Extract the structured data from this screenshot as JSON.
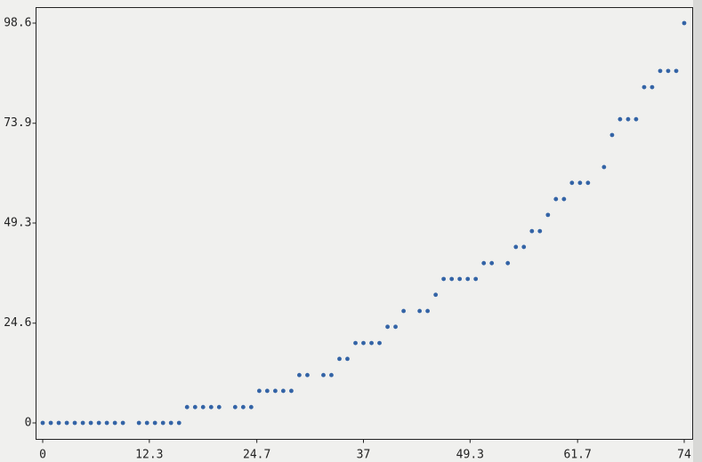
{
  "chart_data": {
    "type": "scatter",
    "color": "#3464a6",
    "xlim": [
      0,
      74
    ],
    "ylim": [
      0,
      98.6
    ],
    "xticks": [
      0,
      12.3,
      24.7,
      37,
      49.3,
      61.7,
      74
    ],
    "yticks": [
      0,
      24.6,
      49.3,
      73.9,
      98.6
    ],
    "x": [
      0,
      0.93,
      1.85,
      2.78,
      3.7,
      4.63,
      5.55,
      6.48,
      7.4,
      8.33,
      9.25,
      11.1,
      12.03,
      12.95,
      13.88,
      14.8,
      15.73,
      16.65,
      17.58,
      18.5,
      19.43,
      20.35,
      22.2,
      23.13,
      24.05,
      24.98,
      25.9,
      26.83,
      27.75,
      28.68,
      29.6,
      30.53,
      32.38,
      33.3,
      34.23,
      35.15,
      36.08,
      37,
      37.93,
      38.85,
      39.78,
      40.7,
      41.63,
      43.48,
      44.4,
      45.33,
      46.25,
      47.18,
      48.1,
      49.03,
      49.95,
      50.88,
      51.8,
      53.65,
      54.58,
      55.5,
      56.43,
      57.35,
      58.28,
      59.2,
      60.13,
      61.05,
      61.98,
      62.9,
      64.75,
      65.68,
      66.6,
      67.53,
      68.45,
      69.38,
      70.3,
      71.23,
      72.15,
      73.08,
      74
    ],
    "values": [
      0,
      0,
      0,
      0,
      0,
      0,
      0,
      0,
      0,
      0,
      0,
      0,
      0,
      0,
      0,
      0,
      0,
      3.9,
      3.9,
      3.9,
      3.9,
      3.9,
      3.9,
      3.9,
      3.9,
      7.9,
      7.9,
      7.9,
      7.9,
      7.9,
      11.8,
      11.8,
      11.8,
      11.8,
      15.8,
      15.8,
      19.7,
      19.7,
      19.7,
      19.7,
      23.7,
      23.7,
      27.6,
      27.6,
      27.6,
      31.6,
      35.5,
      35.5,
      35.5,
      35.5,
      35.5,
      39.4,
      39.4,
      39.4,
      43.4,
      43.4,
      47.3,
      47.3,
      51.3,
      55.2,
      55.2,
      59.2,
      59.2,
      59.2,
      63.1,
      71.0,
      74.9,
      74.9,
      74.9,
      82.8,
      82.8,
      86.8,
      86.8,
      86.8,
      98.6
    ]
  }
}
